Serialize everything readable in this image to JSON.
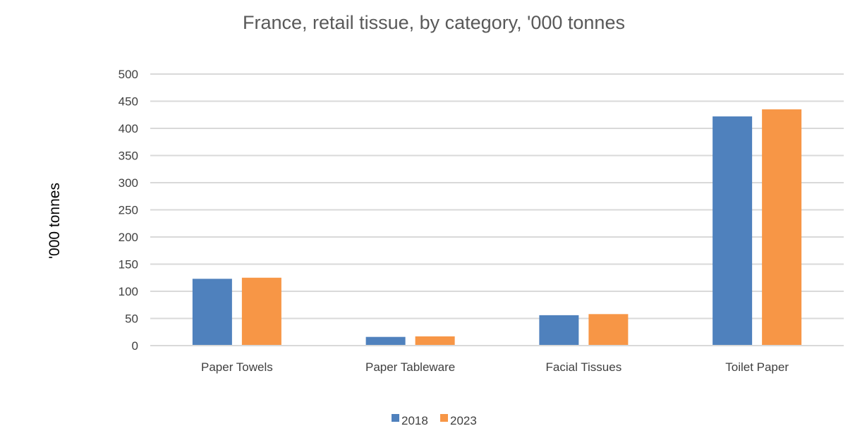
{
  "chart_data": {
    "type": "bar",
    "title": "France, retail tissue, by category, '000 tonnes",
    "xlabel": "",
    "ylabel": "'000 tonnes",
    "categories": [
      "Paper Towels",
      "Paper Tableware",
      "Facial Tissues",
      "Toilet Paper"
    ],
    "series": [
      {
        "name": "2018",
        "color": "#4f81bd",
        "values": [
          123,
          16,
          56,
          422
        ]
      },
      {
        "name": "2023",
        "color": "#f79646",
        "values": [
          125,
          17,
          58,
          435
        ]
      }
    ],
    "ylim": [
      0,
      500
    ],
    "yticks": [
      0,
      50,
      100,
      150,
      200,
      250,
      300,
      350,
      400,
      450,
      500
    ],
    "grid": true,
    "legend": "bottom"
  }
}
